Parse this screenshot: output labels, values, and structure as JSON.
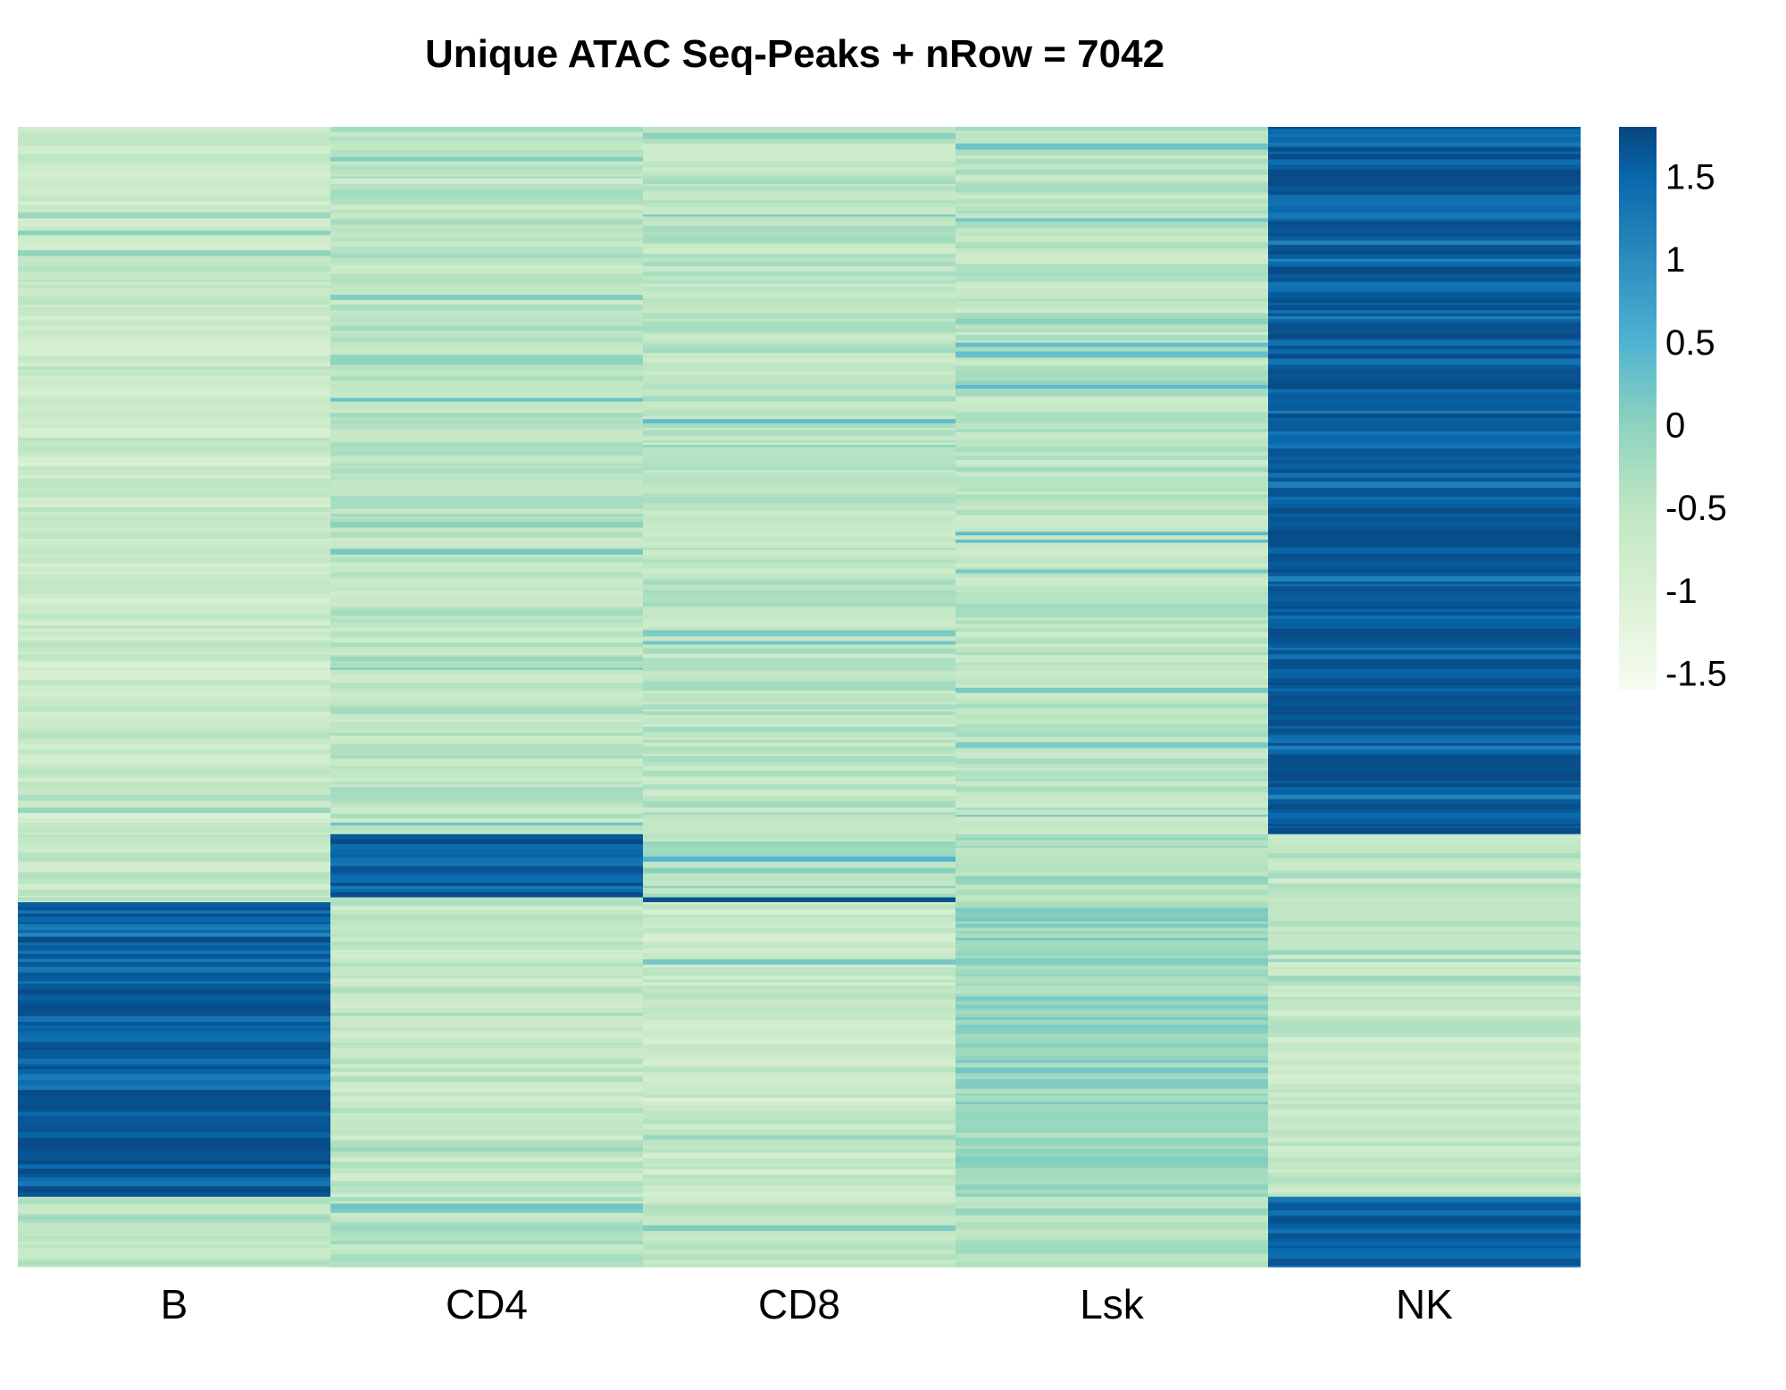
{
  "chart_data": {
    "type": "heatmap",
    "title": "Unique ATAC Seq-Peaks + nRow =  7042",
    "xlabel": "",
    "ylabel": "",
    "columns": [
      "B",
      "CD4",
      "CD8",
      "Lsk",
      "NK"
    ],
    "n_rows": 7042,
    "color_scale": {
      "min": -1.6,
      "max": 1.8,
      "stops": [
        {
          "value": -1.6,
          "color": "#f7fcf0"
        },
        {
          "value": -1.0,
          "color": "#d9f0d3"
        },
        {
          "value": -0.5,
          "color": "#bfe6c3"
        },
        {
          "value": 0.0,
          "color": "#8dd3bd"
        },
        {
          "value": 0.5,
          "color": "#4fb3d3"
        },
        {
          "value": 1.0,
          "color": "#2b8cbe"
        },
        {
          "value": 1.5,
          "color": "#0868ac"
        },
        {
          "value": 1.8,
          "color": "#08457e"
        }
      ],
      "legend_ticks": [
        "1.5",
        "1",
        "0.5",
        "0",
        "-0.5",
        "-1",
        "-1.5"
      ],
      "legend_tick_values": [
        1.5,
        1.0,
        0.5,
        0.0,
        -0.5,
        -1.0,
        -1.5
      ]
    },
    "row_blocks": [
      {
        "rows": [
          0,
          4370
        ],
        "levels": {
          "B": -0.7,
          "CD4": -0.5,
          "CD8": -0.5,
          "Lsk": -0.5,
          "NK": 1.75
        }
      },
      {
        "rows": [
          4370,
          4760
        ],
        "levels": {
          "B": -0.6,
          "CD4": 1.75,
          "CD8": -0.3,
          "Lsk": -0.3,
          "NK": -0.5
        }
      },
      {
        "rows": [
          4760,
          4790
        ],
        "levels": {
          "B": -0.6,
          "CD4": -0.5,
          "CD8": 1.75,
          "Lsk": -0.3,
          "NK": -0.5
        }
      },
      {
        "rows": [
          4790,
          6610
        ],
        "levels": {
          "B": 1.75,
          "CD4": -0.6,
          "CD8": -0.7,
          "Lsk": -0.1,
          "NK": -0.6
        }
      },
      {
        "rows": [
          6610,
          7042
        ],
        "levels": {
          "B": -0.5,
          "CD4": -0.4,
          "CD8": -0.6,
          "Lsk": -0.3,
          "NK": 1.7
        }
      }
    ]
  }
}
